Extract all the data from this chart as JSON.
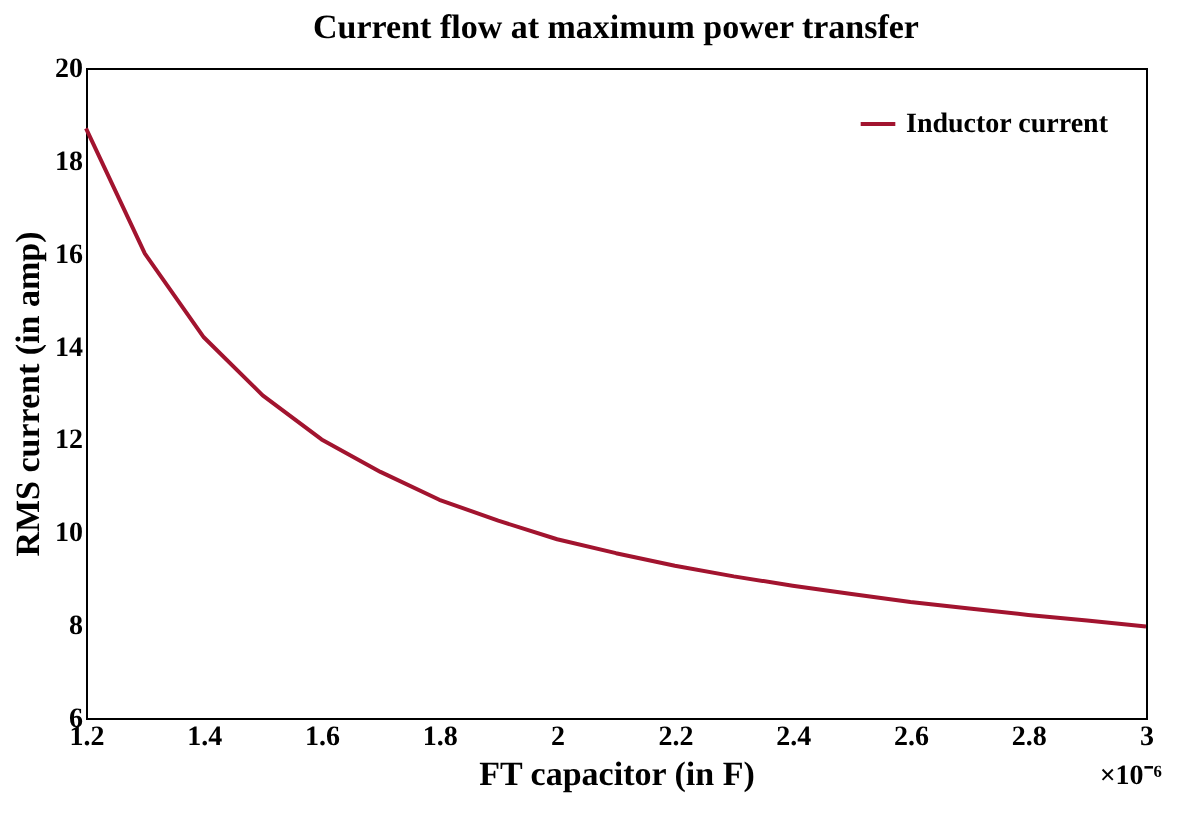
{
  "chart_data": {
    "type": "line",
    "title": "Current flow at maximum power transfer",
    "xlabel": "FT capacitor (in F)",
    "ylabel": "RMS current (in amp)",
    "x": [
      1.2,
      1.3,
      1.4,
      1.5,
      1.6,
      1.7,
      1.8,
      1.9,
      2.0,
      2.1,
      2.2,
      2.3,
      2.4,
      2.5,
      2.6,
      2.7,
      2.8,
      2.9,
      3.0
    ],
    "series": [
      {
        "name": "Inductor current",
        "color": "#a2142f",
        "values": [
          18.7,
          16.0,
          14.2,
          12.95,
          12.0,
          11.3,
          10.7,
          10.25,
          9.85,
          9.55,
          9.28,
          9.05,
          8.85,
          8.67,
          8.5,
          8.36,
          8.22,
          8.1,
          7.97
        ]
      }
    ],
    "xlim": [
      1.2,
      3
    ],
    "xticks": [
      1.2,
      1.4,
      1.6,
      1.8,
      2,
      2.2,
      2.4,
      2.6,
      2.8,
      3
    ],
    "ylim": [
      6,
      20
    ],
    "yticks": [
      6,
      8,
      10,
      12,
      14,
      16,
      18,
      20
    ],
    "annotations": [
      "×10⁻⁶"
    ],
    "grid": false,
    "legend": "top right",
    "marker": "none",
    "line_style": "solid"
  }
}
